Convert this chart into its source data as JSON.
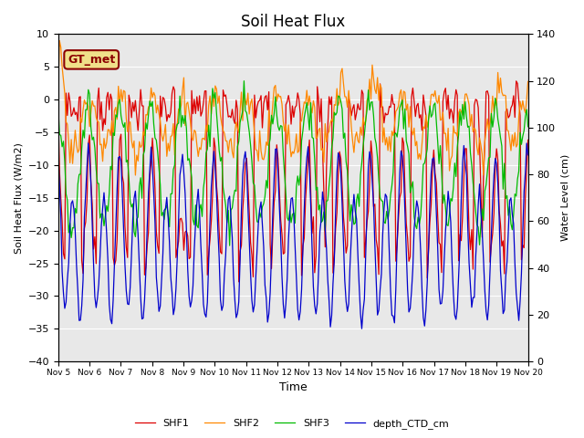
{
  "title": "Soil Heat Flux",
  "ylabel_left": "Soil Heat Flux (W/m2)",
  "ylabel_right": "Water Level (cm)",
  "xlabel": "Time",
  "ylim_left": [
    -40,
    10
  ],
  "ylim_right": [
    0,
    140
  ],
  "annotation_text": "GT_met",
  "legend_labels": [
    "SHF1",
    "SHF2",
    "SHF3",
    "depth_CTD_cm"
  ],
  "line_colors": [
    "#dd0000",
    "#ff8800",
    "#00bb00",
    "#0000cc"
  ],
  "background_color": "#e8e8e8",
  "xtick_labels": [
    "Nov 5",
    "Nov 6",
    "Nov 7",
    "Nov 8",
    "Nov 9",
    "Nov 10",
    "Nov 11",
    "Nov 12",
    "Nov 13",
    "Nov 14",
    "Nov 15",
    "Nov 16",
    "Nov 17",
    "Nov 18",
    "Nov 19",
    "Nov 20"
  ],
  "grid_color": "#ffffff",
  "title_fontsize": 12,
  "n_days": 15,
  "n_hours": 360
}
